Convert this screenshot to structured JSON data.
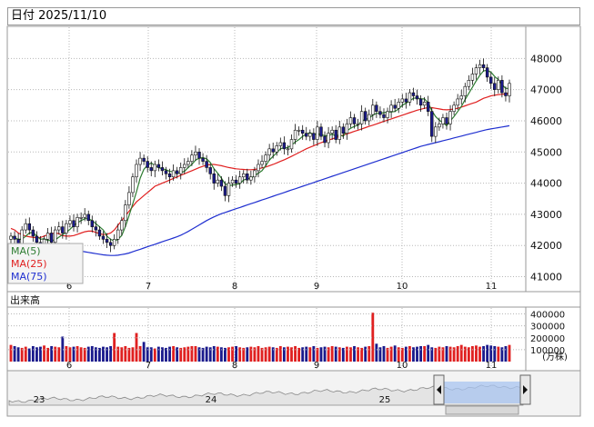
{
  "header": {
    "label": "日付",
    "date": "2025/11/10"
  },
  "legend": {
    "ma5": "MA(5)",
    "ma25": "MA(25)",
    "ma75": "MA(75)"
  },
  "colors": {
    "up_body": "#ffffff",
    "down_body": "#1a1a8c",
    "candle_line": "#111111",
    "ma5": "#2e7d32",
    "ma25": "#e02020",
    "ma75": "#1f2fd0",
    "vol_up": "#e02020",
    "vol_down": "#1a1a8c",
    "grid": "#b8b8b8",
    "nav_fill": "#a8c4f0"
  },
  "chart_data": [
    {
      "type": "candlestick",
      "title": "",
      "y_ticks": [
        41000,
        42000,
        43000,
        44000,
        45000,
        46000,
        47000,
        48000
      ],
      "ylim": [
        40550,
        49000
      ],
      "month_labels": [
        "6",
        "7",
        "8",
        "9",
        "10",
        "11"
      ],
      "grid": true,
      "close": [
        42300,
        42200,
        42000,
        42500,
        42700,
        42500,
        42300,
        42100,
        42000,
        42200,
        42400,
        42100,
        42500,
        42600,
        42400,
        42700,
        42800,
        42600,
        42900,
        42900,
        43000,
        42800,
        42600,
        42500,
        42300,
        42200,
        42100,
        42000,
        42200,
        42500,
        42800,
        43300,
        43700,
        44200,
        44600,
        44800,
        44700,
        44500,
        44400,
        44600,
        44500,
        44400,
        44300,
        44200,
        44400,
        44300,
        44500,
        44600,
        44700,
        44900,
        45000,
        44800,
        44700,
        44500,
        44300,
        44000,
        44100,
        43900,
        43600,
        44000,
        44100,
        44000,
        44200,
        44300,
        44100,
        44200,
        44400,
        44600,
        44700,
        44900,
        45100,
        45000,
        45200,
        45300,
        45100,
        45100,
        45400,
        45700,
        45700,
        45600,
        45500,
        45600,
        45400,
        45800,
        45500,
        45300,
        45600,
        45700,
        45400,
        45800,
        45600,
        45900,
        46100,
        45900,
        45900,
        46300,
        46000,
        46200,
        46500,
        46300,
        46200,
        46100,
        46300,
        46500,
        46400,
        46600,
        46700,
        46600,
        46900,
        46800,
        46700,
        46500,
        46600,
        46300,
        45500,
        45800,
        45900,
        46100,
        45900,
        46300,
        46500,
        46700,
        46800,
        47100,
        47300,
        47500,
        47700,
        47800,
        47700,
        47400,
        47200,
        47000,
        47300,
        46900,
        46800,
        47200
      ],
      "ma5": [
        42300,
        42250,
        42200,
        42200,
        42300,
        42400,
        42420,
        42300,
        42200,
        42220,
        42160,
        42160,
        42180,
        42270,
        42350,
        42420,
        42520,
        42640,
        42730,
        42800,
        42860,
        42860,
        42800,
        42700,
        42600,
        42500,
        42300,
        42200,
        42140,
        42200,
        42320,
        42600,
        42960,
        43340,
        43720,
        44160,
        44440,
        44580,
        44650,
        44560,
        44500,
        44460,
        44430,
        44380,
        44360,
        44320,
        44340,
        44380,
        44500,
        44600,
        44740,
        44800,
        44820,
        44780,
        44660,
        44460,
        44320,
        44160,
        43980,
        43920,
        43940,
        43960,
        43980,
        44100,
        44140,
        44160,
        44240,
        44320,
        44400,
        44560,
        44740,
        44860,
        44980,
        45100,
        45140,
        45140,
        45220,
        45320,
        45400,
        45500,
        45580,
        45620,
        45560,
        45580,
        45560,
        45520,
        45520,
        45580,
        45500,
        45560,
        45500,
        45680,
        45760,
        45820,
        45860,
        46000,
        46040,
        46080,
        46180,
        46240,
        46240,
        46260,
        46280,
        46280,
        46300,
        46380,
        46500,
        46560,
        46640,
        46720,
        46740,
        46700,
        46700,
        46580,
        46320,
        46140,
        46020,
        45940,
        45840,
        46000,
        46140,
        46300,
        46460,
        46680,
        46880,
        47080,
        47280,
        47460,
        47600,
        47620,
        47560,
        47420,
        47320,
        47160,
        47040,
        47040
      ],
      "ma25": [
        42550,
        42500,
        42400,
        42350,
        42300,
        42280,
        42260,
        42250,
        42260,
        42300,
        42350,
        42380,
        42400,
        42380,
        42320,
        42300,
        42300,
        42320,
        42360,
        42400,
        42440,
        42460,
        42460,
        42420,
        42380,
        42350,
        42360,
        42400,
        42500,
        42650,
        42800,
        42950,
        43100,
        43250,
        43400,
        43500,
        43600,
        43700,
        43800,
        43900,
        43950,
        44000,
        44050,
        44100,
        44150,
        44200,
        44250,
        44300,
        44350,
        44400,
        44450,
        44500,
        44540,
        44580,
        44600,
        44600,
        44580,
        44560,
        44530,
        44500,
        44480,
        44460,
        44450,
        44440,
        44430,
        44430,
        44440,
        44460,
        44490,
        44520,
        44560,
        44600,
        44650,
        44700,
        44750,
        44800,
        44860,
        44920,
        44980,
        45040,
        45100,
        45150,
        45200,
        45250,
        45300,
        45340,
        45380,
        45420,
        45460,
        45500,
        45540,
        45580,
        45620,
        45660,
        45700,
        45740,
        45780,
        45820,
        45860,
        45900,
        45940,
        45980,
        46020,
        46060,
        46100,
        46140,
        46180,
        46220,
        46260,
        46300,
        46340,
        46370,
        46400,
        46420,
        46420,
        46400,
        46380,
        46360,
        46350,
        46360,
        46380,
        46400,
        46440,
        46480,
        46520,
        46560,
        46600,
        46660,
        46720,
        46760,
        46800,
        46820,
        46840,
        46850,
        46860,
        46880
      ],
      "ma75": [
        42000,
        41980,
        41950,
        41920,
        41900,
        41880,
        41870,
        41860,
        41850,
        41850,
        41850,
        41850,
        41850,
        41850,
        41850,
        41850,
        41850,
        41840,
        41830,
        41820,
        41800,
        41780,
        41760,
        41740,
        41720,
        41700,
        41690,
        41680,
        41680,
        41690,
        41710,
        41730,
        41760,
        41800,
        41840,
        41880,
        41920,
        41960,
        42000,
        42040,
        42080,
        42120,
        42160,
        42200,
        42240,
        42280,
        42330,
        42390,
        42450,
        42520,
        42590,
        42660,
        42730,
        42800,
        42860,
        42920,
        42970,
        43020,
        43060,
        43100,
        43140,
        43180,
        43220,
        43260,
        43300,
        43340,
        43380,
        43420,
        43460,
        43500,
        43540,
        43580,
        43620,
        43660,
        43700,
        43740,
        43780,
        43820,
        43860,
        43900,
        43940,
        43980,
        44020,
        44060,
        44100,
        44140,
        44180,
        44220,
        44260,
        44300,
        44340,
        44380,
        44420,
        44460,
        44500,
        44540,
        44580,
        44620,
        44660,
        44700,
        44740,
        44780,
        44820,
        44860,
        44900,
        44940,
        44980,
        45020,
        45060,
        45100,
        45140,
        45180,
        45210,
        45240,
        45270,
        45300,
        45330,
        45360,
        45390,
        45420,
        45450,
        45480,
        45510,
        45540,
        45570,
        45600,
        45630,
        45660,
        45690,
        45720,
        45740,
        45760,
        45780,
        45800,
        45820,
        45840
      ],
      "volume_ticks": [
        100000,
        200000,
        300000,
        400000
      ],
      "volume_unit": "(万株)",
      "volume_label": "出来高",
      "volume_ylim": [
        0,
        450000
      ],
      "volume": [
        140000,
        130000,
        120000,
        115000,
        125000,
        110000,
        130000,
        120000,
        125000,
        135000,
        115000,
        130000,
        125000,
        120000,
        210000,
        130000,
        120000,
        125000,
        130000,
        120000,
        115000,
        125000,
        130000,
        120000,
        115000,
        125000,
        120000,
        130000,
        240000,
        125000,
        120000,
        130000,
        115000,
        120000,
        240000,
        130000,
        165000,
        120000,
        120000,
        110000,
        125000,
        120000,
        115000,
        125000,
        130000,
        120000,
        115000,
        120000,
        125000,
        130000,
        130000,
        120000,
        115000,
        125000,
        120000,
        130000,
        125000,
        120000,
        115000,
        120000,
        125000,
        130000,
        120000,
        115000,
        120000,
        125000,
        120000,
        130000,
        115000,
        120000,
        125000,
        120000,
        115000,
        130000,
        120000,
        125000,
        120000,
        130000,
        115000,
        120000,
        125000,
        120000,
        130000,
        115000,
        120000,
        125000,
        120000,
        130000,
        125000,
        120000,
        115000,
        125000,
        120000,
        130000,
        120000,
        115000,
        125000,
        130000,
        410000,
        150000,
        120000,
        130000,
        115000,
        125000,
        135000,
        120000,
        115000,
        125000,
        130000,
        120000,
        125000,
        130000,
        130000,
        140000,
        120000,
        115000,
        125000,
        120000,
        130000,
        125000,
        120000,
        130000,
        140000,
        125000,
        120000,
        130000,
        135000,
        125000,
        130000,
        140000,
        135000,
        130000,
        125000,
        120000,
        130000,
        140000
      ],
      "navigator": {
        "year_labels": [
          "23",
          "24",
          "25"
        ]
      }
    }
  ]
}
